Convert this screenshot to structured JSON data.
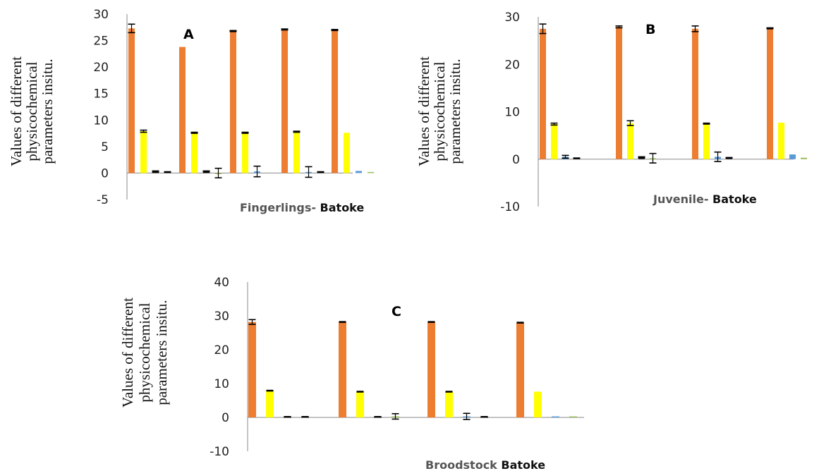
{
  "chart_data": [
    {
      "type": "bar",
      "letter": "A",
      "xtitle_a": "Fingerlings- ",
      "xtitle_b": "Batoke",
      "ylabel_lines": [
        "Values of different",
        "physicochemical",
        "parameters insitu."
      ],
      "ylim": [
        -5,
        30
      ],
      "yticks": [
        "-5",
        "0",
        "5",
        "10",
        "15",
        "20",
        "25",
        "30"
      ],
      "groups": [
        [
          {
            "value": 27.3,
            "color": "#ED7D31",
            "err": 0.8
          },
          {
            "value": 7.9,
            "color": "#FFFF00",
            "err": 0.2
          },
          {
            "value": 0.3,
            "color": "#222222",
            "err": 0.1
          },
          {
            "value": 0.2,
            "color": "#222222",
            "err": 0.05
          }
        ],
        [
          {
            "value": 23.8,
            "color": "#ED7D31",
            "err": 0
          },
          {
            "value": 7.6,
            "color": "#FFFF00",
            "err": 0.1
          },
          {
            "value": 0.3,
            "color": "#222222",
            "err": 0.1
          },
          {
            "value": 0.0,
            "color": "#9BBB59",
            "err": 0.9
          }
        ],
        [
          {
            "value": 26.8,
            "color": "#ED7D31",
            "err": 0.1
          },
          {
            "value": 7.6,
            "color": "#FFFF00",
            "err": 0.1
          },
          {
            "value": 0.3,
            "color": "#5B9BD5",
            "err": 1.0
          }
        ],
        [
          {
            "value": 27.1,
            "color": "#ED7D31",
            "err": 0.1
          },
          {
            "value": 7.8,
            "color": "#FFFF00",
            "err": 0.1
          },
          {
            "value": 0.2,
            "color": "#5B9BD5",
            "err": 1.0
          },
          {
            "value": 0.2,
            "color": "#222222",
            "err": 0.05
          }
        ],
        [
          {
            "value": 27.0,
            "color": "#ED7D31",
            "err": 0.1
          },
          {
            "value": 7.6,
            "color": "#FFFF00",
            "err": 0
          },
          {
            "value": 0.4,
            "color": "#5B9BD5",
            "err": 0
          },
          {
            "value": 0.2,
            "color": "#9BBB59",
            "err": 0
          }
        ]
      ]
    },
    {
      "type": "bar",
      "letter": "B",
      "xtitle_a": "Juvenile- ",
      "xtitle_b": "Batoke",
      "ylabel_lines": [
        "Values of different",
        "physicochemical",
        "parameters insitu."
      ],
      "ylim": [
        -10,
        30
      ],
      "yticks": [
        "-10",
        "0",
        "10",
        "20",
        "30"
      ],
      "groups": [
        [
          {
            "value": 27.5,
            "color": "#ED7D31",
            "err": 1.0
          },
          {
            "value": 7.4,
            "color": "#FFFF00",
            "err": 0.2
          },
          {
            "value": 0.5,
            "color": "#5B9BD5",
            "err": 0.3
          },
          {
            "value": 0.2,
            "color": "#222222",
            "err": 0.05
          }
        ],
        [
          {
            "value": 27.9,
            "color": "#ED7D31",
            "err": 0.2
          },
          {
            "value": 7.6,
            "color": "#FFFF00",
            "err": 0.5
          },
          {
            "value": 0.4,
            "color": "#222222",
            "err": 0.1
          },
          {
            "value": 0.2,
            "color": "#9BBB59",
            "err": 1.0
          }
        ],
        [
          {
            "value": 27.5,
            "color": "#ED7D31",
            "err": 0.6
          },
          {
            "value": 7.5,
            "color": "#FFFF00",
            "err": 0.1
          },
          {
            "value": 0.5,
            "color": "#5B9BD5",
            "err": 1.0
          },
          {
            "value": 0.3,
            "color": "#222222",
            "err": 0.05
          }
        ],
        [
          {
            "value": 27.6,
            "color": "#ED7D31",
            "err": 0.1
          },
          {
            "value": 7.7,
            "color": "#FFFF00",
            "err": 0
          },
          {
            "value": 1.0,
            "color": "#5B9BD5",
            "err": 0
          },
          {
            "value": 0.3,
            "color": "#9BBB59",
            "err": 0
          }
        ]
      ]
    },
    {
      "type": "bar",
      "letter": "C",
      "xtitle_a": "Broodstock ",
      "xtitle_b": "Batoke",
      "ylabel_lines": [
        "Values of different",
        "physicochemical",
        "parameters insitu."
      ],
      "ylim": [
        -10,
        40
      ],
      "yticks": [
        "-10",
        "0",
        "10",
        "20",
        "30",
        "40"
      ],
      "groups": [
        [
          {
            "value": 28.2,
            "color": "#ED7D31",
            "err": 0.7
          },
          {
            "value": 7.9,
            "color": "#FFFF00",
            "err": 0.1
          },
          {
            "value": 0.2,
            "color": "#222222",
            "err": 0.05
          },
          {
            "value": 0.2,
            "color": "#222222",
            "err": 0.05
          }
        ],
        [
          {
            "value": 28.2,
            "color": "#ED7D31",
            "err": 0.1
          },
          {
            "value": 7.6,
            "color": "#FFFF00",
            "err": 0.1
          },
          {
            "value": 0.2,
            "color": "#222222",
            "err": 0.05
          },
          {
            "value": 0.3,
            "color": "#9BBB59",
            "err": 0.8
          }
        ],
        [
          {
            "value": 28.2,
            "color": "#ED7D31",
            "err": 0.1
          },
          {
            "value": 7.6,
            "color": "#FFFF00",
            "err": 0.1
          },
          {
            "value": 0.3,
            "color": "#5B9BD5",
            "err": 0.9
          },
          {
            "value": 0.2,
            "color": "#222222",
            "err": 0.05
          }
        ],
        [
          {
            "value": 28.0,
            "color": "#ED7D31",
            "err": 0.1
          },
          {
            "value": 7.6,
            "color": "#FFFF00",
            "err": 0
          },
          {
            "value": 0.3,
            "color": "#5B9BD5",
            "err": 0
          },
          {
            "value": 0.3,
            "color": "#9BBB59",
            "err": 0
          }
        ]
      ]
    }
  ]
}
